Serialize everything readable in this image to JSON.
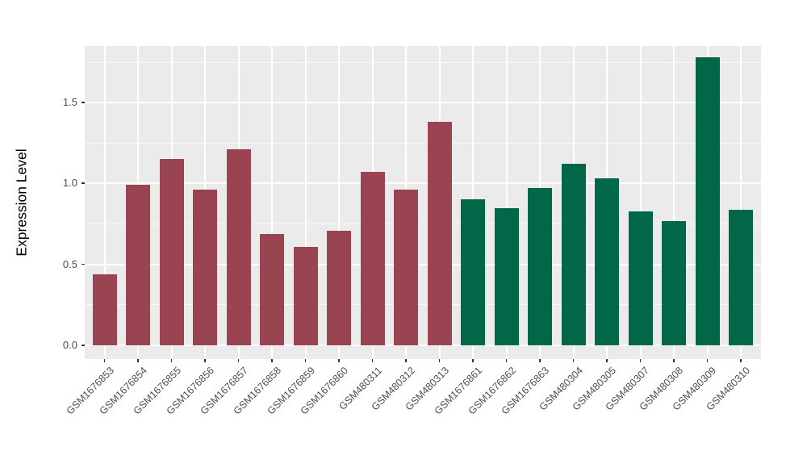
{
  "chart_data": {
    "type": "bar",
    "title": "",
    "xlabel": "",
    "ylabel": "Expression Level",
    "legend": "none",
    "grid": "on",
    "bars": [
      {
        "label": "GSM1676853",
        "value": 0.44,
        "group": "group1"
      },
      {
        "label": "GSM1676854",
        "value": 0.99,
        "group": "group1"
      },
      {
        "label": "GSM1676855",
        "value": 1.15,
        "group": "group1"
      },
      {
        "label": "GSM1676856",
        "value": 0.96,
        "group": "group1"
      },
      {
        "label": "GSM1676857",
        "value": 1.21,
        "group": "group1"
      },
      {
        "label": "GSM1676858",
        "value": 0.69,
        "group": "group1"
      },
      {
        "label": "GSM1676859",
        "value": 0.61,
        "group": "group1"
      },
      {
        "label": "GSM1676860",
        "value": 0.71,
        "group": "group1"
      },
      {
        "label": "GSM480311",
        "value": 1.07,
        "group": "group1"
      },
      {
        "label": "GSM480312",
        "value": 0.96,
        "group": "group1"
      },
      {
        "label": "GSM480313",
        "value": 1.38,
        "group": "group1"
      },
      {
        "label": "GSM1676861",
        "value": 0.9,
        "group": "group2"
      },
      {
        "label": "GSM1676862",
        "value": 0.85,
        "group": "group2"
      },
      {
        "label": "GSM1676863",
        "value": 0.97,
        "group": "group2"
      },
      {
        "label": "GSM480304",
        "value": 1.12,
        "group": "group2"
      },
      {
        "label": "GSM480305",
        "value": 1.03,
        "group": "group2"
      },
      {
        "label": "GSM480307",
        "value": 0.83,
        "group": "group2"
      },
      {
        "label": "GSM480308",
        "value": 0.77,
        "group": "group2"
      },
      {
        "label": "GSM480309",
        "value": 1.78,
        "group": "group2"
      },
      {
        "label": "GSM480310",
        "value": 0.84,
        "group": "group2"
      }
    ],
    "group_colors": {
      "group1": "#9A4452",
      "group2": "#026649"
    },
    "y_axis": {
      "ticks": [
        {
          "label": "0.0",
          "value": 0.0
        },
        {
          "label": "0.5",
          "value": 0.5
        },
        {
          "label": "1.0",
          "value": 1.0
        },
        {
          "label": "1.5",
          "value": 1.5
        }
      ],
      "minor_ticks": [
        0.25,
        0.75,
        1.25,
        1.75
      ],
      "range": [
        -0.085,
        1.85
      ]
    },
    "style": {
      "panel_bg": "#EBEBEB",
      "grid_major_color": "#FFFFFF",
      "grid_minor_color": "#FFFFFF",
      "tick_color": "#333333",
      "axis_text_color": "#4D4D4D",
      "title_text_color": "#000000"
    }
  }
}
